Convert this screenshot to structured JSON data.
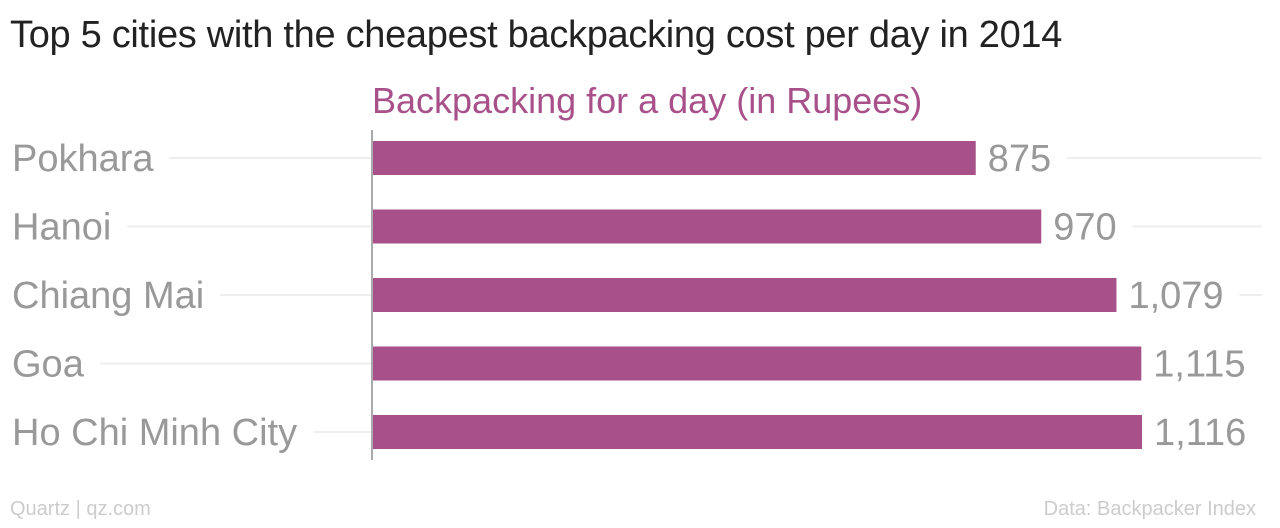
{
  "chart_data": {
    "type": "bar",
    "orientation": "horizontal",
    "title": "Top 5 cities with the cheapest backpacking cost per day in 2014",
    "series": [
      {
        "name": "Backpacking for a day (in Rupees)",
        "color": "#a8508a",
        "values": [
          875,
          970,
          1079,
          1115,
          1116
        ],
        "value_labels": [
          "875",
          "970",
          "1,079",
          "1,115",
          "1,116"
        ]
      }
    ],
    "categories": [
      "Pokhara",
      "Hanoi",
      "Chiang Mai",
      "Goa",
      "Ho Chi Minh City"
    ],
    "xlim": [
      0,
      1116
    ],
    "grid": true
  },
  "footer": {
    "source_brand": "Quartz | qz.com",
    "data_source": "Data: Backpacker Index"
  },
  "colors": {
    "bar": "#a8508a",
    "label": "#999999",
    "title": "#222222",
    "gridline": "#eeeeee",
    "axis": "#aaaaaa"
  }
}
